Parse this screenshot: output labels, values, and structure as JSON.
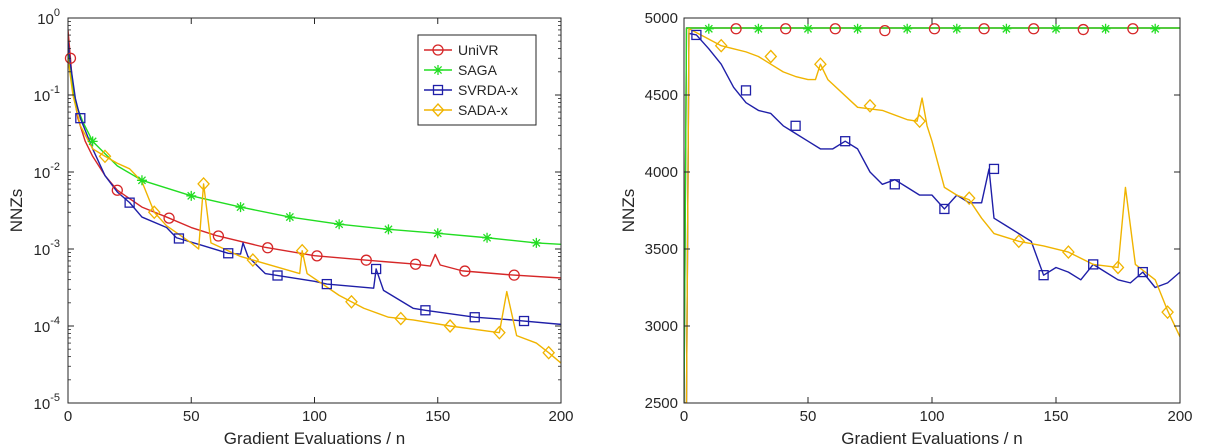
{
  "chart_data": [
    {
      "type": "line",
      "xlabel": "Gradient Evaluations / n",
      "ylabel": "NNZs",
      "xscale": "linear",
      "yscale": "log",
      "xlim": [
        0,
        200
      ],
      "ylim": [
        1e-05,
        1
      ],
      "x_ticks": [
        0,
        50,
        100,
        150,
        200
      ],
      "x_tick_labels": [
        "0",
        "50",
        "100",
        "150",
        "200"
      ],
      "y_ticks": [
        1e-05,
        0.0001,
        0.001,
        0.01,
        0.1,
        1
      ],
      "y_tick_labels": [
        {
          "base": "10",
          "exp": "-5"
        },
        {
          "base": "10",
          "exp": "-4"
        },
        {
          "base": "10",
          "exp": "-3"
        },
        {
          "base": "10",
          "exp": "-2"
        },
        {
          "base": "10",
          "exp": "-1"
        },
        {
          "base": "10",
          "exp": "0"
        }
      ],
      "grid": false,
      "legend_position": "top-right",
      "series": [
        {
          "name": "UniVR",
          "color": "#d62728",
          "marker": "circle",
          "points": [
            [
              0,
              0.7
            ],
            [
              1,
              0.3
            ],
            [
              2,
              0.12
            ],
            [
              4,
              0.05
            ],
            [
              7,
              0.025
            ],
            [
              10,
              0.016
            ],
            [
              15,
              0.009
            ],
            [
              20,
              0.0058
            ],
            [
              30,
              0.0035
            ],
            [
              40,
              0.0026
            ],
            [
              50,
              0.0019
            ],
            [
              60,
              0.0015
            ],
            [
              80,
              0.00105
            ],
            [
              100,
              0.00082
            ],
            [
              120,
              0.00072
            ],
            [
              140,
              0.00064
            ],
            [
              147,
              0.0006
            ],
            [
              149,
              0.00085
            ],
            [
              151,
              0.00062
            ],
            [
              160,
              0.00052
            ],
            [
              180,
              0.00046
            ],
            [
              200,
              0.00042
            ]
          ],
          "markers_x": [
            1,
            20,
            41,
            61,
            81,
            101,
            121,
            141,
            161,
            181
          ]
        },
        {
          "name": "SAGA",
          "color": "#22dd22",
          "marker": "star",
          "points": [
            [
              0,
              0.35
            ],
            [
              1,
              0.2
            ],
            [
              3,
              0.08
            ],
            [
              6,
              0.045
            ],
            [
              10,
              0.025
            ],
            [
              20,
              0.012
            ],
            [
              30,
              0.0078
            ],
            [
              50,
              0.0049
            ],
            [
              70,
              0.0035
            ],
            [
              90,
              0.0026
            ],
            [
              110,
              0.0021
            ],
            [
              130,
              0.0018
            ],
            [
              150,
              0.0016
            ],
            [
              170,
              0.0014
            ],
            [
              190,
              0.0012
            ],
            [
              200,
              0.00115
            ]
          ],
          "markers_x": [
            10,
            30,
            50,
            70,
            90,
            110,
            130,
            150,
            170,
            190
          ]
        },
        {
          "name": "SVRDA-x",
          "color": "#1f1fa8",
          "marker": "square",
          "points": [
            [
              0,
              0.5
            ],
            [
              1,
              0.25
            ],
            [
              3,
              0.09
            ],
            [
              5,
              0.05
            ],
            [
              10,
              0.02
            ],
            [
              15,
              0.009
            ],
            [
              20,
              0.0055
            ],
            [
              25,
              0.004
            ],
            [
              30,
              0.0026
            ],
            [
              40,
              0.0019
            ],
            [
              44,
              0.0014
            ],
            [
              55,
              0.0011
            ],
            [
              65,
              0.00088
            ],
            [
              70,
              0.00086
            ],
            [
              71,
              0.0012
            ],
            [
              73,
              0.0008
            ],
            [
              80,
              0.00048
            ],
            [
              100,
              0.00038
            ],
            [
              105,
              0.00035
            ],
            [
              124,
              0.00031
            ],
            [
              125,
              0.00055
            ],
            [
              128,
              0.00029
            ],
            [
              140,
              0.00017
            ],
            [
              145,
              0.00016
            ],
            [
              165,
              0.00013
            ],
            [
              180,
              0.00012
            ],
            [
              200,
              0.000105
            ]
          ],
          "markers_x": [
            5,
            25,
            45,
            65,
            85,
            105,
            125,
            145,
            165,
            185
          ]
        },
        {
          "name": "SADA-x",
          "color": "#f0b400",
          "marker": "diamond",
          "points": [
            [
              0,
              0.3
            ],
            [
              2,
              0.1
            ],
            [
              5,
              0.04
            ],
            [
              10,
              0.02
            ],
            [
              15,
              0.016
            ],
            [
              20,
              0.013
            ],
            [
              25,
              0.011
            ],
            [
              30,
              0.0075
            ],
            [
              35,
              0.003
            ],
            [
              40,
              0.002
            ],
            [
              50,
              0.0012
            ],
            [
              53,
              0.001
            ],
            [
              55,
              0.007
            ],
            [
              58,
              0.0012
            ],
            [
              70,
              0.0008
            ],
            [
              94,
              0.00048
            ],
            [
              95,
              0.00095
            ],
            [
              97,
              0.00048
            ],
            [
              110,
              0.00025
            ],
            [
              120,
              0.00017
            ],
            [
              130,
              0.00013
            ],
            [
              140,
              0.00012
            ],
            [
              155,
              0.0001
            ],
            [
              175,
              8.2e-05
            ],
            [
              178,
              0.00028
            ],
            [
              182,
              7.5e-05
            ],
            [
              190,
              6e-05
            ],
            [
              195,
              4.5e-05
            ],
            [
              200,
              3.3e-05
            ]
          ],
          "markers_x": [
            15,
            35,
            55,
            75,
            95,
            115,
            135,
            155,
            175,
            195
          ]
        }
      ]
    },
    {
      "type": "line",
      "xlabel": "Gradient Evaluations / n",
      "ylabel": "NNZs",
      "xscale": "linear",
      "yscale": "linear",
      "xlim": [
        0,
        200
      ],
      "ylim": [
        2500,
        5000
      ],
      "x_ticks": [
        0,
        50,
        100,
        150,
        200
      ],
      "x_tick_labels": [
        "0",
        "50",
        "100",
        "150",
        "200"
      ],
      "y_ticks": [
        2500,
        3000,
        3500,
        4000,
        4500,
        5000
      ],
      "y_tick_labels": [
        "2500",
        "3000",
        "3500",
        "4000",
        "4500",
        "5000"
      ],
      "grid": false,
      "legend_position": "none",
      "series": [
        {
          "name": "UniVR",
          "color": "#d62728",
          "marker": "circle",
          "points": [
            [
              0,
              2500
            ],
            [
              1,
              4935
            ],
            [
              200,
              4935
            ]
          ],
          "markers": [
            [
              21,
              4930
            ],
            [
              41,
              4930
            ],
            [
              61,
              4930
            ],
            [
              81,
              4918
            ],
            [
              101,
              4930
            ],
            [
              121,
              4930
            ],
            [
              141,
              4930
            ],
            [
              161,
              4925
            ],
            [
              181,
              4930
            ]
          ]
        },
        {
          "name": "SAGA",
          "color": "#22dd22",
          "marker": "star",
          "points": [
            [
              0,
              2500
            ],
            [
              1,
              4935
            ],
            [
              200,
              4935
            ]
          ],
          "markers": [
            [
              10,
              4930
            ],
            [
              30,
              4930
            ],
            [
              50,
              4930
            ],
            [
              70,
              4930
            ],
            [
              90,
              4930
            ],
            [
              110,
              4930
            ],
            [
              130,
              4930
            ],
            [
              150,
              4930
            ],
            [
              170,
              4930
            ],
            [
              190,
              4930
            ]
          ]
        },
        {
          "name": "SVRDA-x",
          "color": "#1f1fa8",
          "marker": "square",
          "points": [
            [
              0,
              2500
            ],
            [
              1,
              2500
            ],
            [
              2,
              4900
            ],
            [
              5,
              4890
            ],
            [
              10,
              4800
            ],
            [
              15,
              4700
            ],
            [
              20,
              4550
            ],
            [
              25,
              4450
            ],
            [
              30,
              4400
            ],
            [
              35,
              4380
            ],
            [
              40,
              4300
            ],
            [
              45,
              4250
            ],
            [
              50,
              4200
            ],
            [
              55,
              4150
            ],
            [
              60,
              4150
            ],
            [
              65,
              4200
            ],
            [
              70,
              4150
            ],
            [
              75,
              4000
            ],
            [
              80,
              3920
            ],
            [
              85,
              3950
            ],
            [
              90,
              3900
            ],
            [
              95,
              3850
            ],
            [
              100,
              3850
            ],
            [
              105,
              3760
            ],
            [
              110,
              3850
            ],
            [
              115,
              3800
            ],
            [
              120,
              3800
            ],
            [
              123,
              4020
            ],
            [
              125,
              3700
            ],
            [
              130,
              3650
            ],
            [
              135,
              3600
            ],
            [
              140,
              3550
            ],
            [
              145,
              3330
            ],
            [
              150,
              3380
            ],
            [
              155,
              3350
            ],
            [
              160,
              3300
            ],
            [
              165,
              3400
            ],
            [
              170,
              3350
            ],
            [
              175,
              3300
            ],
            [
              180,
              3280
            ],
            [
              185,
              3350
            ],
            [
              190,
              3250
            ],
            [
              195,
              3280
            ],
            [
              200,
              3350
            ]
          ],
          "markers": [
            [
              5,
              4890
            ],
            [
              25,
              4530
            ],
            [
              45,
              4300
            ],
            [
              65,
              4200
            ],
            [
              85,
              3920
            ],
            [
              105,
              3760
            ],
            [
              125,
              4020
            ],
            [
              145,
              3330
            ],
            [
              165,
              3400
            ],
            [
              185,
              3350
            ]
          ]
        },
        {
          "name": "SADA-x",
          "color": "#f0b400",
          "marker": "diamond",
          "points": [
            [
              0,
              2500
            ],
            [
              1,
              2500
            ],
            [
              2,
              4930
            ],
            [
              8,
              4880
            ],
            [
              15,
              4820
            ],
            [
              20,
              4800
            ],
            [
              25,
              4780
            ],
            [
              30,
              4750
            ],
            [
              35,
              4700
            ],
            [
              40,
              4650
            ],
            [
              45,
              4620
            ],
            [
              50,
              4600
            ],
            [
              53,
              4600
            ],
            [
              55,
              4700
            ],
            [
              58,
              4600
            ],
            [
              70,
              4420
            ],
            [
              80,
              4400
            ],
            [
              90,
              4340
            ],
            [
              94,
              4330
            ],
            [
              96,
              4480
            ],
            [
              98,
              4300
            ],
            [
              100,
              4200
            ],
            [
              105,
              3900
            ],
            [
              110,
              3850
            ],
            [
              115,
              3820
            ],
            [
              120,
              3700
            ],
            [
              125,
              3600
            ],
            [
              135,
              3550
            ],
            [
              145,
              3520
            ],
            [
              155,
              3480
            ],
            [
              165,
              3400
            ],
            [
              175,
              3380
            ],
            [
              178,
              3900
            ],
            [
              182,
              3400
            ],
            [
              190,
              3300
            ],
            [
              195,
              3100
            ],
            [
              200,
              2930
            ]
          ],
          "markers": [
            [
              15,
              4820
            ],
            [
              35,
              4750
            ],
            [
              55,
              4700
            ],
            [
              75,
              4430
            ],
            [
              95,
              4330
            ],
            [
              115,
              3830
            ],
            [
              135,
              3550
            ],
            [
              155,
              3480
            ],
            [
              175,
              3380
            ],
            [
              195,
              3090
            ]
          ]
        }
      ]
    }
  ]
}
